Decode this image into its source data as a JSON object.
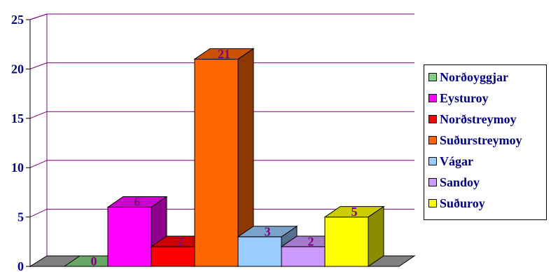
{
  "chart_data": {
    "type": "bar",
    "categories": [
      "Norðoyggjar",
      "Eysturoy",
      "Norðstreymoy",
      "Suðurstreymoy",
      "Vágar",
      "Sandoy",
      "Suðuroy"
    ],
    "values": [
      0,
      6,
      2,
      21,
      3,
      2,
      5
    ],
    "data_labels": [
      "0",
      "6",
      "2",
      "21",
      "3",
      "2",
      "5"
    ],
    "colors": [
      "#7fd17f",
      "#ff00ff",
      "#ff0000",
      "#ff6600",
      "#99ccff",
      "#cc99ff",
      "#ffff00"
    ],
    "y_ticks": [
      "0",
      "5",
      "10",
      "15",
      "20",
      "25"
    ],
    "ylim": [
      0,
      25
    ],
    "title": "",
    "xlabel": "",
    "ylabel": "",
    "grid": true,
    "three_d": true,
    "legend": {
      "placement": "right",
      "items": [
        "Norðoyggjar",
        "Eysturoy",
        "Norðstreymoy",
        "Suðurstreymoy",
        "Vágar",
        "Sandoy",
        "Suðuroy"
      ]
    }
  }
}
